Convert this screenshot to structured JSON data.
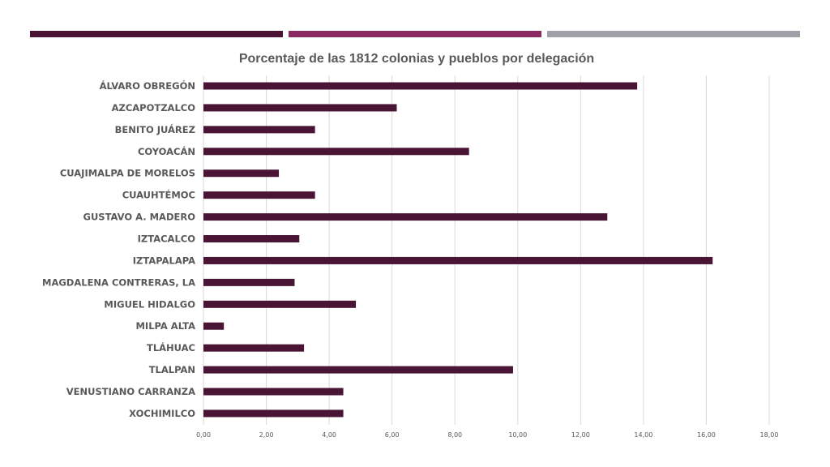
{
  "header_stripes": [
    {
      "color": "#4a1535"
    },
    {
      "color": "#8b2a61"
    },
    {
      "color": "#9ea2a8"
    }
  ],
  "colors": {
    "bar": "#4a1535",
    "gridline": "#d9d9d9",
    "text": "#595959"
  },
  "chart_data": {
    "type": "bar",
    "orientation": "horizontal",
    "title": "Porcentaje de las 1812 colonias y pueblos por delegación",
    "categories": [
      "ÁLVARO OBREGÓN",
      "AZCAPOTZALCO",
      "BENITO JUÁREZ",
      "COYOACÁN",
      "CUAJIMALPA DE MORELOS",
      "CUAUHTÉMOC",
      "GUSTAVO A. MADERO",
      "IZTACALCO",
      "IZTAPALAPA",
      "MAGDALENA CONTRERAS, LA",
      "MIGUEL HIDALGO",
      "MILPA ALTA",
      "TLÁHUAC",
      "TLALPAN",
      "VENUSTIANO CARRANZA",
      "XOCHIMILCO"
    ],
    "values": [
      13.8,
      6.15,
      3.55,
      8.45,
      2.4,
      3.55,
      12.85,
      3.05,
      16.2,
      2.9,
      4.85,
      0.65,
      3.2,
      9.85,
      4.45,
      4.45
    ],
    "xlim": [
      0,
      18
    ],
    "xticks": [
      "0,00",
      "2,00",
      "4,00",
      "6,00",
      "8,00",
      "10,00",
      "12,00",
      "14,00",
      "16,00",
      "18,00"
    ],
    "grid": true,
    "legend": "none"
  }
}
